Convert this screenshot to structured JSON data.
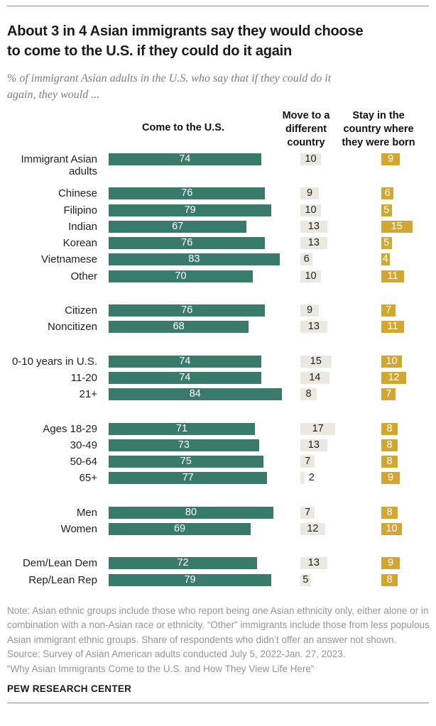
{
  "title": "About 3 in 4 Asian immigrants say they would choose\nto come to the U.S. if they could do it again",
  "subtitle": "% of immigrant Asian adults in the U.S. who say that if they could do it\nagain, they would ...",
  "columns": {
    "come": "Come to the U.S.",
    "move": "Move to a\ndifferent\ncountry",
    "stay": "Stay in the\ncountry where\nthey were born"
  },
  "chart_data": {
    "type": "bar",
    "orientation": "horizontal",
    "unit": "%",
    "value_range": [
      0,
      100
    ],
    "series": [
      "Come to the U.S.",
      "Move to a different country",
      "Stay in the country where they were born"
    ],
    "colors": {
      "come": "#3a7a6b",
      "move": "#ebe8e1",
      "stay": "#d1a731"
    },
    "groups": [
      {
        "name": "all",
        "rows": [
          {
            "label": "Immigrant Asian adults",
            "come": 74,
            "move": 10,
            "stay": 9
          }
        ]
      },
      {
        "name": "ethnicity",
        "rows": [
          {
            "label": "Chinese",
            "come": 76,
            "move": 9,
            "stay": 6
          },
          {
            "label": "Filipino",
            "come": 79,
            "move": 10,
            "stay": 5
          },
          {
            "label": "Indian",
            "come": 67,
            "move": 13,
            "stay": 15
          },
          {
            "label": "Korean",
            "come": 76,
            "move": 13,
            "stay": 5
          },
          {
            "label": "Vietnamese",
            "come": 83,
            "move": 6,
            "stay": 4
          },
          {
            "label": "Other",
            "come": 70,
            "move": 10,
            "stay": 11
          }
        ]
      },
      {
        "name": "citizenship",
        "rows": [
          {
            "label": "Citizen",
            "come": 76,
            "move": 9,
            "stay": 7
          },
          {
            "label": "Noncitizen",
            "come": 68,
            "move": 13,
            "stay": 11
          }
        ]
      },
      {
        "name": "years-in-us",
        "rows": [
          {
            "label": "0-10 years in U.S.",
            "come": 74,
            "move": 15,
            "stay": 10
          },
          {
            "label": "11-20",
            "come": 74,
            "move": 14,
            "stay": 12
          },
          {
            "label": "21+",
            "come": 84,
            "move": 8,
            "stay": 7
          }
        ]
      },
      {
        "name": "age",
        "rows": [
          {
            "label": "Ages 18-29",
            "come": 71,
            "move": 17,
            "stay": 8
          },
          {
            "label": "30-49",
            "come": 73,
            "move": 13,
            "stay": 8
          },
          {
            "label": "50-64",
            "come": 75,
            "move": 7,
            "stay": 8
          },
          {
            "label": "65+",
            "come": 77,
            "move": 2,
            "stay": 9
          }
        ]
      },
      {
        "name": "gender",
        "rows": [
          {
            "label": "Men",
            "come": 80,
            "move": 7,
            "stay": 8
          },
          {
            "label": "Women",
            "come": 69,
            "move": 12,
            "stay": 10
          }
        ]
      },
      {
        "name": "party",
        "rows": [
          {
            "label": "Dem/Lean Dem",
            "come": 72,
            "move": 13,
            "stay": 9
          },
          {
            "label": "Rep/Lean Rep",
            "come": 79,
            "move": 5,
            "stay": 8
          }
        ]
      }
    ]
  },
  "footer": {
    "note": "Note: Asian ethnic groups include those who report being one Asian ethnicity only, either alone or in combination with a non-Asian race or ethnicity. “Other” immigrants include those from less populous Asian immigrant ethnic groups. Share of respondents who didn’t offer an answer not shown.",
    "source": "Source: Survey of Asian American adults conducted July 5, 2022-Jan. 27, 2023.",
    "quote": "“Why Asian Immigrants Come to the U.S. and How They View Life Here”",
    "brand": "PEW RESEARCH CENTER"
  }
}
